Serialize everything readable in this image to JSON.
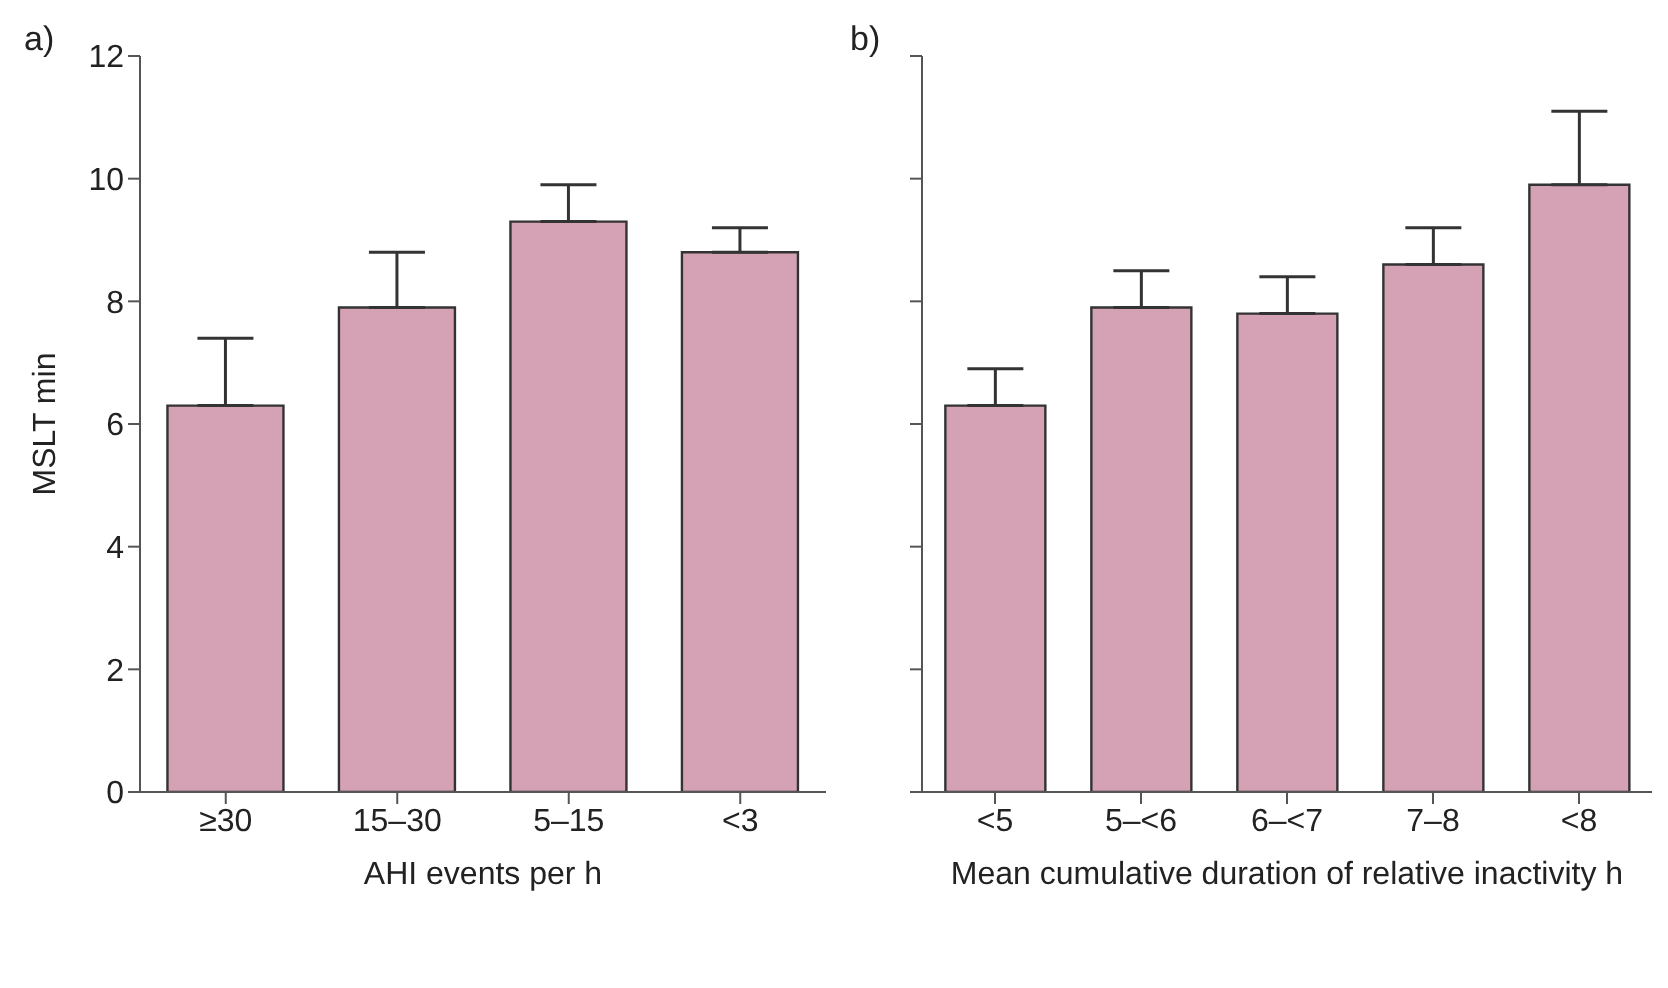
{
  "chart_data": [
    {
      "type": "bar",
      "annotations": [
        "a)"
      ],
      "xlabel": "AHI events per h",
      "ylabel": "MSLT min",
      "categories": [
        "≥30",
        "15–30",
        "5–15",
        "<3"
      ],
      "values": [
        6.3,
        7.9,
        9.3,
        8.8
      ],
      "errors": [
        [
          6.3,
          7.4
        ],
        [
          7.9,
          8.8
        ],
        [
          9.3,
          9.9
        ],
        [
          8.8,
          9.2
        ]
      ],
      "color": "#d4a2b4",
      "ylim": [
        0,
        12
      ],
      "yticks": [
        0,
        2,
        4,
        6,
        8,
        10,
        12
      ],
      "grid": false,
      "legend": false
    },
    {
      "type": "bar",
      "annotations": [
        "b)"
      ],
      "xlabel": "Mean cumulative duration of relative inactivity h",
      "categories": [
        "<5",
        "5–<6",
        "6–<7",
        "7–8",
        "<8"
      ],
      "values": [
        6.3,
        7.9,
        7.8,
        8.6,
        9.9
      ],
      "errors": [
        [
          6.3,
          6.9
        ],
        [
          7.9,
          8.5
        ],
        [
          7.8,
          8.4
        ],
        [
          8.6,
          9.2
        ],
        [
          9.9,
          11.1
        ]
      ],
      "color": "#d4a2b4",
      "ylim": [
        0,
        12
      ],
      "yticks": [
        {
          "value": 0,
          "label": null
        },
        {
          "value": 2,
          "label": null
        },
        {
          "value": 4,
          "label": null
        },
        {
          "value": 6,
          "label": null
        },
        {
          "value": 8,
          "label": null
        },
        {
          "value": 10,
          "label": null
        },
        {
          "value": 12,
          "label": null
        }
      ],
      "tick_labels": "x",
      "grid": false,
      "legend": false
    }
  ]
}
